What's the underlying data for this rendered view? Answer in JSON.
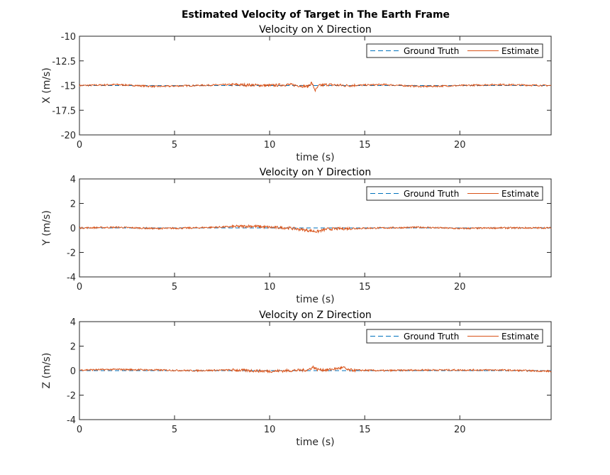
{
  "figure_title": "Estimated Velocity of Target in The Earth Frame",
  "legend_entries": [
    "Ground Truth",
    "Estimate"
  ],
  "colors": {
    "ground_truth": "#0072BD",
    "estimate": "#D95319",
    "axes": "#262626",
    "background": "#ffffff"
  },
  "chart_data": [
    {
      "type": "line",
      "title": "Velocity on X Direction",
      "xlabel": "time (s)",
      "ylabel": "X (m/s)",
      "xlim": [
        0,
        24.8
      ],
      "ylim": [
        -20,
        -10
      ],
      "xticks": [
        0,
        5,
        10,
        15,
        20
      ],
      "yticks": [
        -20,
        -17.5,
        -15,
        -12.5,
        -10
      ],
      "ytick_labels": [
        "-20",
        "-17.5",
        "-15",
        "-12.5",
        "-10"
      ],
      "grid": false,
      "legend": "top-right",
      "series": [
        {
          "name": "Ground Truth",
          "x": [
            0,
            24.8
          ],
          "y": [
            -15,
            -15
          ]
        },
        {
          "name": "Estimate",
          "x": [
            0,
            2,
            4,
            6,
            8,
            10,
            11,
            12,
            12.2,
            12.4,
            12.6,
            13,
            14,
            16,
            18,
            20,
            22,
            24.8
          ],
          "y": [
            -15.0,
            -14.9,
            -15.1,
            -15.0,
            -14.9,
            -15.0,
            -14.9,
            -15.1,
            -14.7,
            -15.5,
            -15.0,
            -14.9,
            -15.0,
            -14.9,
            -15.1,
            -15.0,
            -14.9,
            -15.0
          ]
        }
      ]
    },
    {
      "type": "line",
      "title": "Velocity on Y Direction",
      "xlabel": "time (s)",
      "ylabel": "Y (m/s)",
      "xlim": [
        0,
        24.8
      ],
      "ylim": [
        -4,
        4
      ],
      "xticks": [
        0,
        5,
        10,
        15,
        20
      ],
      "yticks": [
        -4,
        -2,
        0,
        2,
        4
      ],
      "ytick_labels": [
        "-4",
        "-2",
        "0",
        "2",
        "4"
      ],
      "grid": false,
      "legend": "top-right",
      "series": [
        {
          "name": "Ground Truth",
          "x": [
            0,
            24.8
          ],
          "y": [
            0,
            0
          ]
        },
        {
          "name": "Estimate",
          "x": [
            0,
            2,
            4,
            6,
            8,
            9,
            10,
            11,
            12,
            12.5,
            13,
            14,
            16,
            18,
            20,
            22,
            24.8
          ],
          "y": [
            0.0,
            0.05,
            -0.05,
            0.0,
            0.1,
            0.15,
            0.05,
            0.0,
            -0.2,
            -0.3,
            -0.1,
            -0.05,
            0.0,
            0.05,
            -0.05,
            0.0,
            0.0
          ]
        }
      ]
    },
    {
      "type": "line",
      "title": "Velocity on Z Direction",
      "xlabel": "time (s)",
      "ylabel": "Z (m/s)",
      "xlim": [
        0,
        24.8
      ],
      "ylim": [
        -4,
        4
      ],
      "xticks": [
        0,
        5,
        10,
        15,
        20
      ],
      "yticks": [
        -4,
        -2,
        0,
        2,
        4
      ],
      "ytick_labels": [
        "-4",
        "-2",
        "0",
        "2",
        "4"
      ],
      "grid": false,
      "legend": "top-right",
      "series": [
        {
          "name": "Ground Truth",
          "x": [
            0,
            24.8
          ],
          "y": [
            0,
            0
          ]
        },
        {
          "name": "Estimate",
          "x": [
            0,
            2,
            4,
            6,
            8,
            10,
            12,
            12.3,
            12.5,
            13,
            13.9,
            14.1,
            16,
            18,
            20,
            22,
            24.8
          ],
          "y": [
            0.05,
            0.1,
            0.05,
            0.0,
            0.05,
            -0.05,
            0.05,
            0.3,
            0.1,
            0.05,
            0.25,
            0.05,
            0.0,
            0.05,
            0.05,
            0.05,
            -0.05
          ]
        }
      ]
    }
  ]
}
